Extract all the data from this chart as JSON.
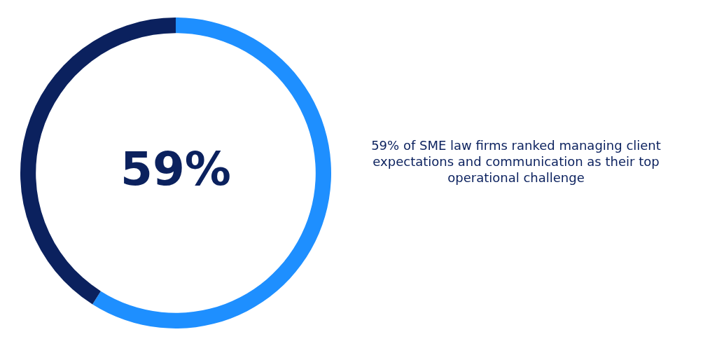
{
  "chart_data": {
    "type": "donut",
    "categories": [
      null,
      null
    ],
    "values": [
      59,
      41
    ],
    "colors": [
      "#1e8fff",
      "#0b215e"
    ],
    "legend": false,
    "annotations": [
      "59%",
      "59% of SME law firms ranked managing client expectations and communication as their top operational challenge"
    ]
  }
}
